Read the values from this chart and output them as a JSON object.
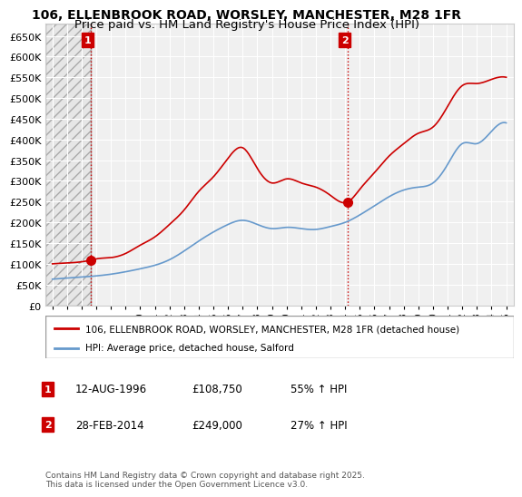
{
  "title1": "106, ELLENBROOK ROAD, WORSLEY, MANCHESTER, M28 1FR",
  "title2": "Price paid vs. HM Land Registry's House Price Index (HPI)",
  "ylabel": "",
  "ylim": [
    0,
    680000
  ],
  "yticks": [
    0,
    50000,
    100000,
    150000,
    200000,
    250000,
    300000,
    350000,
    400000,
    450000,
    500000,
    550000,
    600000,
    650000
  ],
  "ytick_labels": [
    "£0",
    "£50K",
    "£100K",
    "£150K",
    "£200K",
    "£250K",
    "£300K",
    "£350K",
    "£400K",
    "£450K",
    "£500K",
    "£550K",
    "£600K",
    "£650K"
  ],
  "xlim_start": 1993.5,
  "xlim_end": 2025.5,
  "xticks": [
    1994,
    1995,
    1996,
    1997,
    1998,
    1999,
    2000,
    2001,
    2002,
    2003,
    2004,
    2005,
    2006,
    2007,
    2008,
    2009,
    2010,
    2011,
    2012,
    2013,
    2014,
    2015,
    2016,
    2017,
    2018,
    2019,
    2020,
    2021,
    2022,
    2023,
    2024,
    2025
  ],
  "background_color": "#ffffff",
  "plot_bg_color": "#f0f0f0",
  "grid_color": "#ffffff",
  "sale1_x": 1996.6,
  "sale1_y": 108750,
  "sale1_label": "1",
  "sale2_x": 2014.17,
  "sale2_y": 249000,
  "sale2_label": "2",
  "red_line_color": "#cc0000",
  "blue_line_color": "#6699cc",
  "vline_color": "#cc0000",
  "vline_style": ":",
  "legend_label_red": "106, ELLENBROOK ROAD, WORSLEY, MANCHESTER, M28 1FR (detached house)",
  "legend_label_blue": "HPI: Average price, detached house, Salford",
  "annotation1_box_color": "#cc0000",
  "annotation2_box_color": "#cc0000",
  "table_row1": [
    "1",
    "12-AUG-1996",
    "£108,750",
    "55% ↑ HPI"
  ],
  "table_row2": [
    "2",
    "28-FEB-2014",
    "£249,000",
    "27% ↑ HPI"
  ],
  "footer": "Contains HM Land Registry data © Crown copyright and database right 2025.\nThis data is licensed under the Open Government Licence v3.0.",
  "title_fontsize": 10,
  "axis_fontsize": 8.5
}
